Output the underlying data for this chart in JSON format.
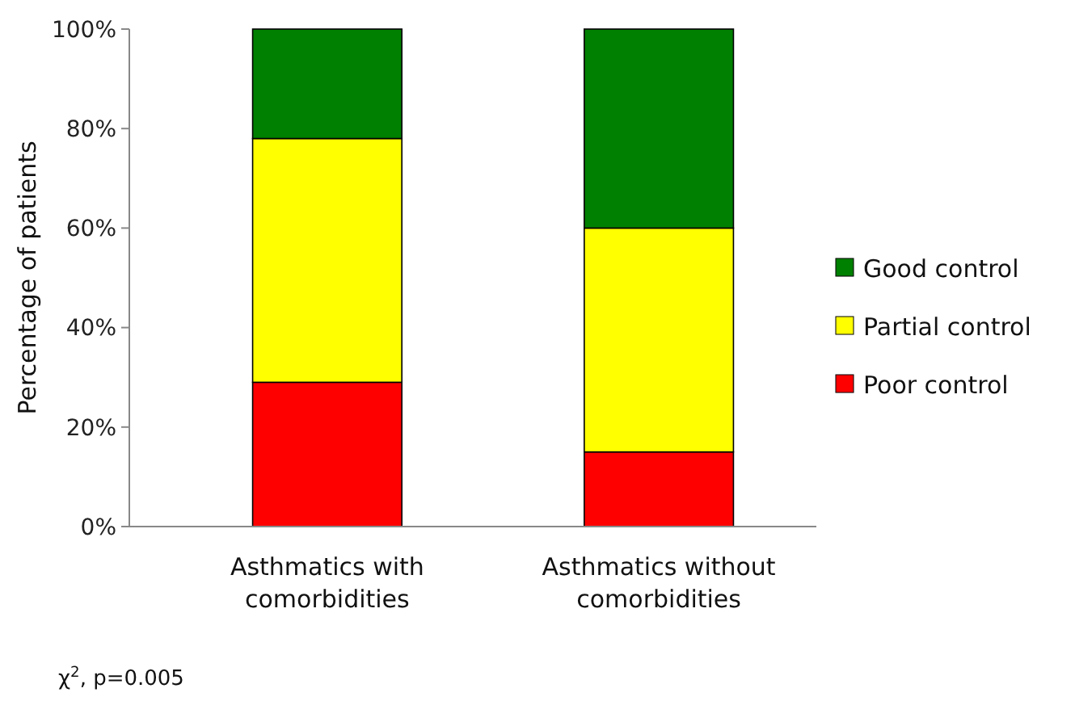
{
  "chart_data": {
    "type": "bar",
    "stacked": true,
    "ylabel": "Percentage of patients",
    "categories": [
      "Asthmatics with comorbidities",
      "Asthmatics without comorbidities"
    ],
    "series": [
      {
        "name": "Poor control",
        "color": "#ff0000",
        "values": [
          29,
          15
        ]
      },
      {
        "name": "Partial control",
        "color": "#ffff00",
        "values": [
          49,
          45
        ]
      },
      {
        "name": "Good control",
        "color": "#008000",
        "values": [
          22,
          40
        ]
      }
    ],
    "ylim": [
      0,
      100
    ],
    "yticks": [
      {
        "value": 0,
        "label": "0%"
      },
      {
        "value": 20,
        "label": "20%"
      },
      {
        "value": 40,
        "label": "40%"
      },
      {
        "value": 60,
        "label": "60%"
      },
      {
        "value": 80,
        "label": "80%"
      },
      {
        "value": 100,
        "label": "100%"
      }
    ],
    "legend": "right",
    "annotations": [
      "χ$^{2}$, p=0.005"
    ]
  }
}
